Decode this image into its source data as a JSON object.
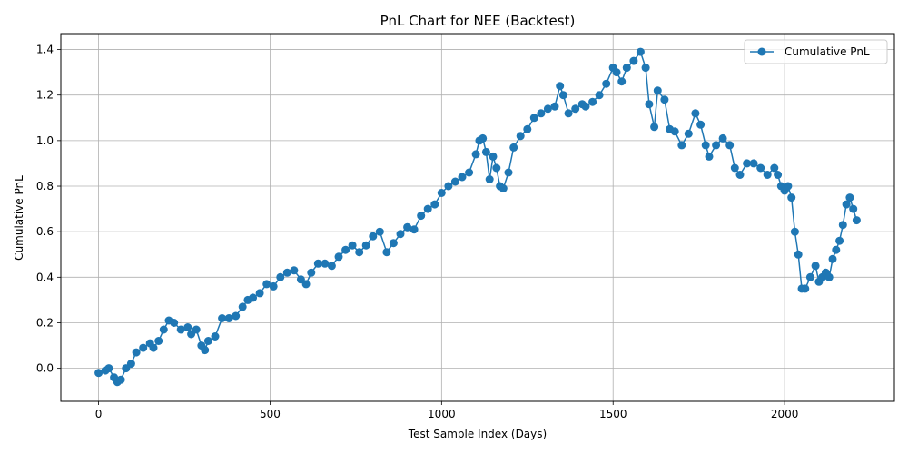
{
  "chart_data": {
    "type": "line",
    "title": "PnL Chart for NEE (Backtest)",
    "xlabel": "Test Sample Index (Days)",
    "ylabel": "Cumulative PnL",
    "xlim": [
      -110,
      2320
    ],
    "ylim": [
      -0.145,
      1.47
    ],
    "xticks": [
      0,
      500,
      1000,
      1500,
      2000
    ],
    "yticks": [
      0.0,
      0.2,
      0.4,
      0.6,
      0.8,
      1.0,
      1.2,
      1.4
    ],
    "xtick_labels": [
      "0",
      "500",
      "1000",
      "1500",
      "2000"
    ],
    "ytick_labels": [
      "0.0",
      "0.2",
      "0.4",
      "0.6",
      "0.8",
      "1.0",
      "1.2",
      "1.4"
    ],
    "grid": true,
    "legend_position": "top-right",
    "series": [
      {
        "name": "Cumulative PnL",
        "color": "#1f77b4",
        "marker": "circle",
        "x": [
          0,
          20,
          30,
          45,
          55,
          65,
          80,
          95,
          110,
          130,
          150,
          160,
          175,
          190,
          205,
          220,
          240,
          260,
          270,
          285,
          300,
          310,
          320,
          340,
          360,
          380,
          400,
          420,
          435,
          450,
          470,
          490,
          510,
          530,
          550,
          570,
          590,
          605,
          620,
          640,
          660,
          680,
          700,
          720,
          740,
          760,
          780,
          800,
          820,
          840,
          860,
          880,
          900,
          920,
          940,
          960,
          980,
          1000,
          1020,
          1040,
          1060,
          1080,
          1100,
          1110,
          1120,
          1130,
          1140,
          1150,
          1160,
          1170,
          1180,
          1195,
          1210,
          1230,
          1250,
          1270,
          1290,
          1310,
          1330,
          1345,
          1355,
          1370,
          1390,
          1410,
          1420,
          1440,
          1460,
          1480,
          1500,
          1510,
          1525,
          1540,
          1560,
          1580,
          1595,
          1605,
          1620,
          1630,
          1650,
          1665,
          1680,
          1700,
          1720,
          1740,
          1755,
          1770,
          1780,
          1800,
          1820,
          1840,
          1855,
          1870,
          1890,
          1910,
          1930,
          1950,
          1970,
          1980,
          1990,
          2000,
          2010,
          2020,
          2030,
          2040,
          2050,
          2060,
          2075,
          2090,
          2100,
          2110,
          2120,
          2130,
          2140,
          2150,
          2160,
          2170,
          2180,
          2190,
          2200,
          2210
        ],
        "values": [
          -0.02,
          -0.01,
          0.0,
          -0.04,
          -0.06,
          -0.05,
          0.0,
          0.02,
          0.07,
          0.09,
          0.11,
          0.09,
          0.12,
          0.17,
          0.21,
          0.2,
          0.17,
          0.18,
          0.15,
          0.17,
          0.1,
          0.08,
          0.12,
          0.14,
          0.22,
          0.22,
          0.23,
          0.27,
          0.3,
          0.31,
          0.33,
          0.37,
          0.36,
          0.4,
          0.42,
          0.43,
          0.39,
          0.37,
          0.42,
          0.46,
          0.46,
          0.45,
          0.49,
          0.52,
          0.54,
          0.51,
          0.54,
          0.58,
          0.6,
          0.51,
          0.55,
          0.59,
          0.62,
          0.61,
          0.67,
          0.7,
          0.72,
          0.77,
          0.8,
          0.82,
          0.84,
          0.86,
          0.94,
          1.0,
          1.01,
          0.95,
          0.83,
          0.93,
          0.88,
          0.8,
          0.79,
          0.86,
          0.97,
          1.02,
          1.05,
          1.1,
          1.12,
          1.14,
          1.15,
          1.24,
          1.2,
          1.12,
          1.14,
          1.16,
          1.15,
          1.17,
          1.2,
          1.25,
          1.32,
          1.3,
          1.26,
          1.32,
          1.35,
          1.39,
          1.32,
          1.16,
          1.06,
          1.22,
          1.18,
          1.05,
          1.04,
          0.98,
          1.03,
          1.12,
          1.07,
          0.98,
          0.93,
          0.98,
          1.01,
          0.98,
          0.88,
          0.85,
          0.9,
          0.9,
          0.88,
          0.85,
          0.88,
          0.85,
          0.8,
          0.78,
          0.8,
          0.75,
          0.6,
          0.5,
          0.35,
          0.35,
          0.4,
          0.45,
          0.38,
          0.4,
          0.42,
          0.4,
          0.48,
          0.52,
          0.56,
          0.63,
          0.72,
          0.75,
          0.7,
          0.65
        ]
      }
    ]
  }
}
